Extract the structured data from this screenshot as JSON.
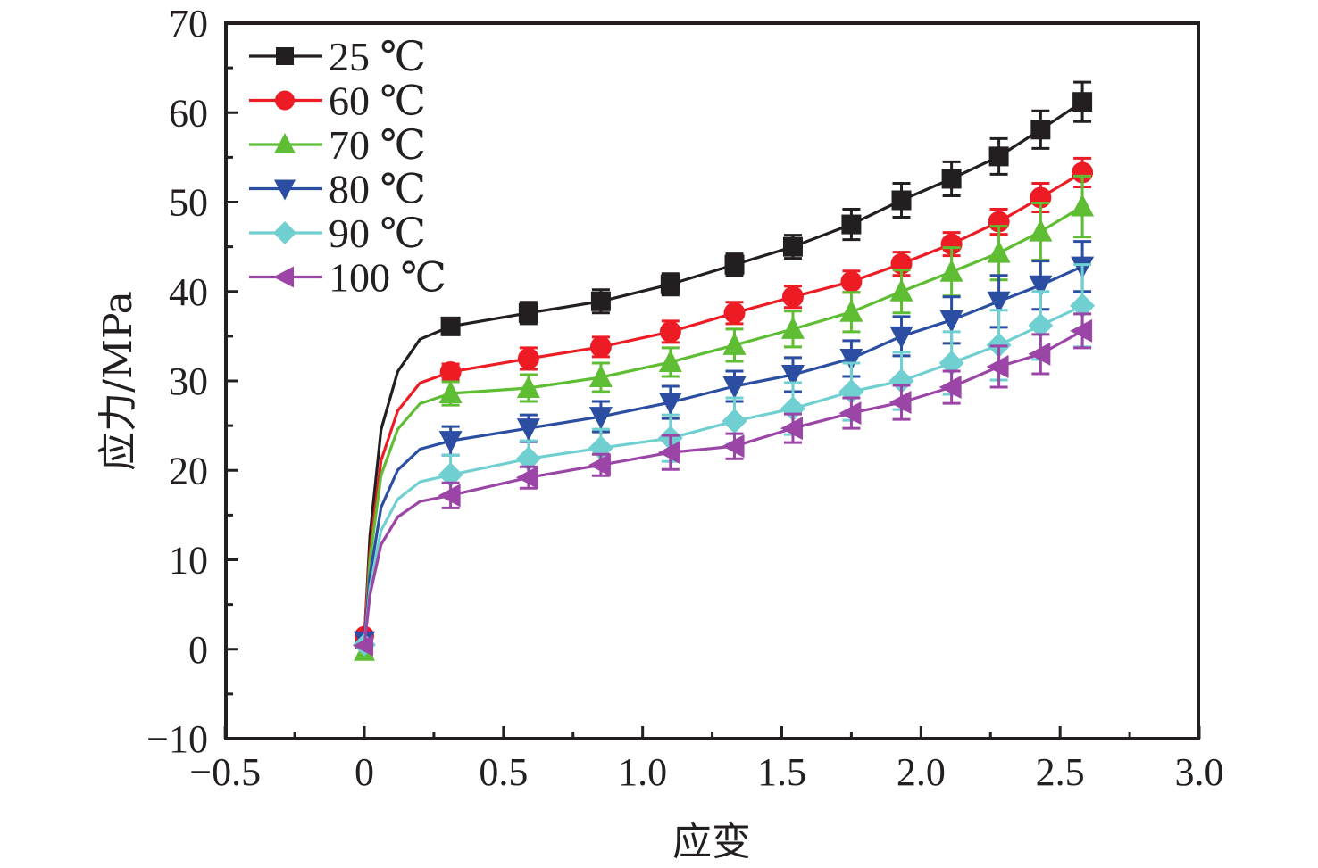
{
  "chart_data": {
    "type": "line",
    "title": "",
    "xlabel": "应变",
    "ylabel": "应力/MPa",
    "xlim": [
      -0.5,
      3.0
    ],
    "ylim": [
      -10,
      70
    ],
    "x_ticks": [
      -0.5,
      0,
      0.5,
      1.0,
      1.5,
      2.0,
      2.5,
      3.0
    ],
    "x_tick_labels": [
      "−0.5",
      "0",
      "0.5",
      "1.0",
      "1.5",
      "2.0",
      "2.5",
      "3.0"
    ],
    "y_ticks": [
      -10,
      0,
      10,
      20,
      30,
      40,
      50,
      60,
      70
    ],
    "y_tick_labels": [
      "−10",
      "0",
      "10",
      "20",
      "30",
      "40",
      "50",
      "60",
      "70"
    ],
    "grid": false,
    "legend_position": "top-left",
    "x": [
      0.31,
      0.59,
      0.85,
      1.1,
      1.33,
      1.54,
      1.75,
      1.93,
      2.11,
      2.28,
      2.43,
      2.58
    ],
    "series": [
      {
        "name": "25 ℃",
        "color": "#231f20",
        "marker": "square",
        "start": 1.0,
        "values": [
          36.1,
          37.6,
          38.9,
          40.8,
          43.0,
          45.0,
          47.5,
          50.2,
          52.6,
          55.1,
          58.1,
          61.2
        ],
        "errors": [
          0.6,
          1.2,
          1.3,
          1.2,
          1.2,
          1.3,
          1.7,
          1.9,
          1.9,
          2.0,
          2.1,
          2.2
        ]
      },
      {
        "name": "60 ℃",
        "color": "#ed1c24",
        "marker": "circle",
        "start": 1.5,
        "values": [
          31.0,
          32.5,
          33.8,
          35.5,
          37.6,
          39.4,
          41.1,
          43.1,
          45.3,
          47.8,
          50.5,
          53.3
        ],
        "errors": [
          0.9,
          1.2,
          1.1,
          1.2,
          1.2,
          1.2,
          1.2,
          1.3,
          1.3,
          1.4,
          1.6,
          1.6
        ]
      },
      {
        "name": "70 ℃",
        "color": "#5ebd33",
        "marker": "triangle-up",
        "start": -0.3,
        "values": [
          28.6,
          29.2,
          30.4,
          32.1,
          34.0,
          35.8,
          37.7,
          40.0,
          42.2,
          44.3,
          46.7,
          49.5
        ],
        "errors": [
          1.3,
          1.5,
          1.6,
          1.6,
          1.8,
          2.0,
          2.2,
          2.4,
          2.7,
          3.0,
          3.2,
          3.4
        ]
      },
      {
        "name": "80 ℃",
        "color": "#2b4ea2",
        "marker": "triangle-down",
        "start": 1.0,
        "values": [
          23.3,
          24.7,
          26.0,
          27.6,
          29.4,
          30.7,
          32.5,
          35.0,
          36.8,
          38.9,
          40.7,
          42.8
        ],
        "errors": [
          1.6,
          1.5,
          1.7,
          1.8,
          1.7,
          1.9,
          2.0,
          2.2,
          2.6,
          2.9,
          2.7,
          2.8
        ]
      },
      {
        "name": "90 ℃",
        "color": "#70cfd1",
        "marker": "diamond",
        "start": 0.5,
        "values": [
          19.5,
          21.3,
          22.5,
          23.6,
          25.5,
          26.9,
          28.8,
          30.0,
          32.0,
          34.0,
          36.2,
          38.4
        ],
        "errors": [
          2.2,
          2.0,
          2.1,
          2.6,
          2.6,
          2.9,
          3.2,
          3.2,
          3.5,
          3.9,
          3.8,
          4.6
        ]
      },
      {
        "name": "100 ℃",
        "color": "#9b45a6",
        "marker": "triangle-left",
        "start": 0.4,
        "values": [
          17.2,
          19.2,
          20.6,
          22.0,
          22.7,
          24.7,
          26.4,
          27.6,
          29.3,
          31.6,
          33.0,
          35.6
        ],
        "errors": [
          1.4,
          1.2,
          1.2,
          1.9,
          1.4,
          1.6,
          1.7,
          1.9,
          1.8,
          2.3,
          2.2,
          1.9
        ]
      }
    ]
  }
}
